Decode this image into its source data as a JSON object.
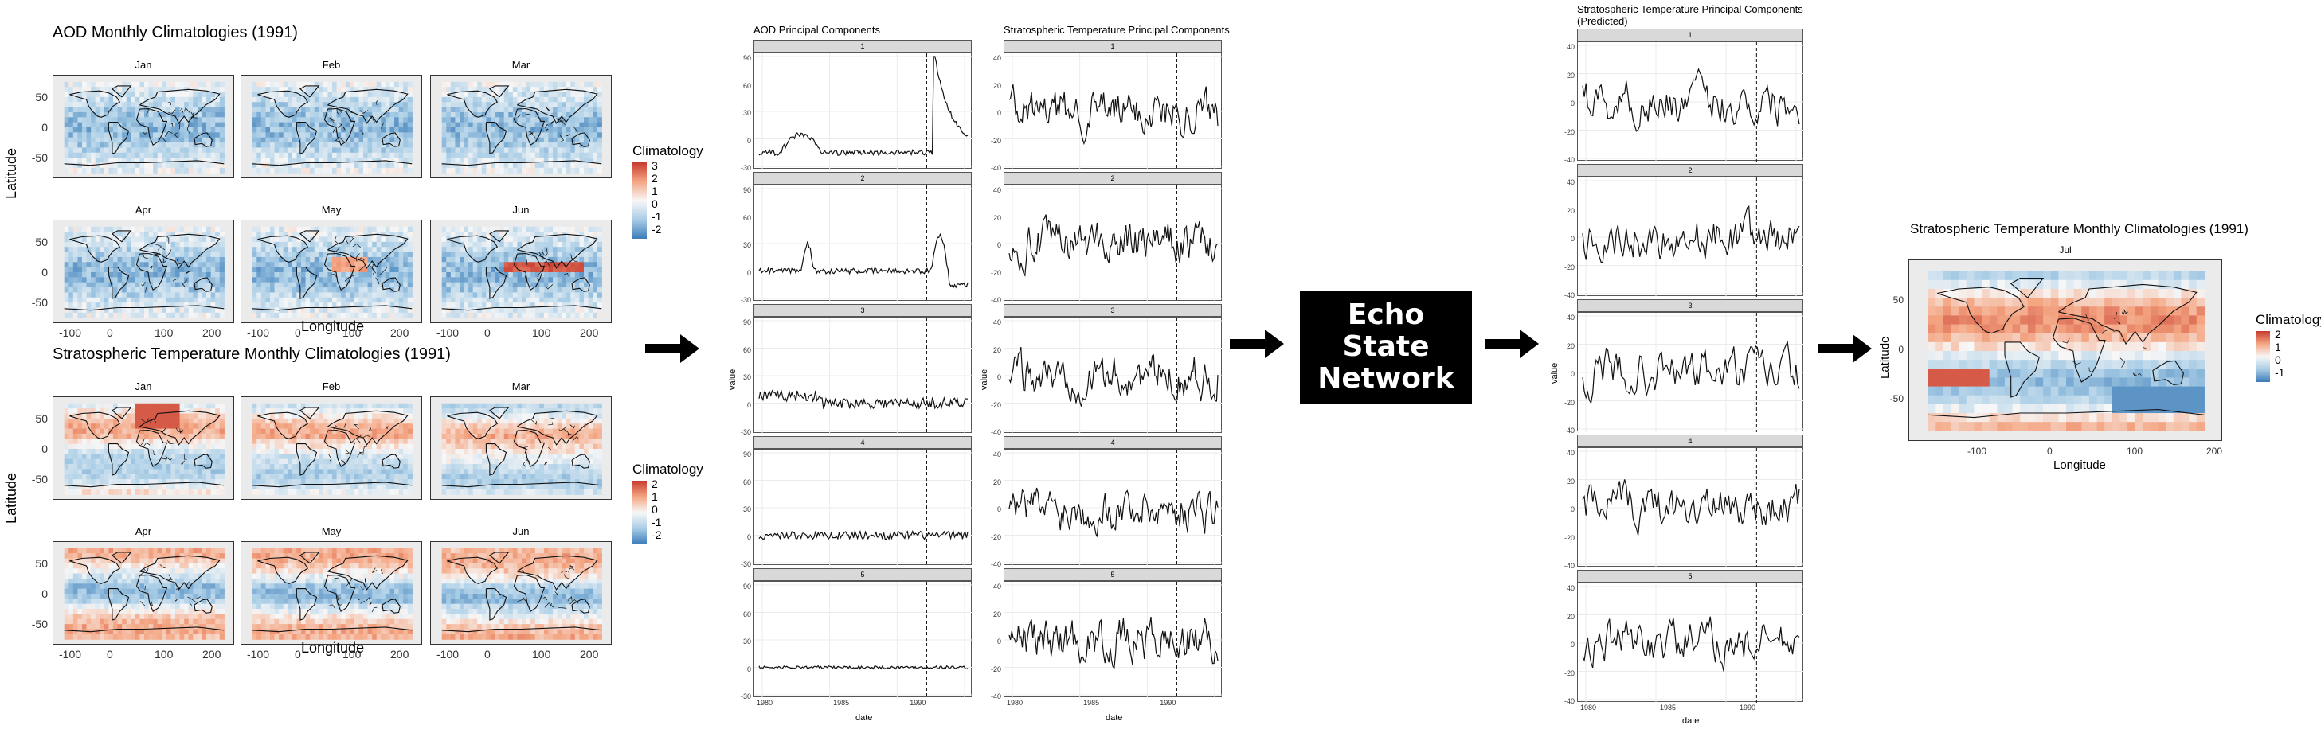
{
  "colors": {
    "blue": "#3b7cb8",
    "lightblue": "#a9cde6",
    "white": "#f7f7f7",
    "lightred": "#f4a582",
    "red": "#c73a2e",
    "panel_bg": "#ffffff",
    "grid": "#ebebeb",
    "strip": "#d9d9d9",
    "esn_bg": "#000000",
    "esn_text": "#ffffff"
  },
  "aod_maps": {
    "title": "AOD Monthly Climatologies (1991)",
    "months": [
      "Jan",
      "Feb",
      "Mar",
      "Apr",
      "May",
      "Jun"
    ],
    "ylabel": "Latitude",
    "xlabel": "Longitude",
    "y_ticks": [
      "50",
      "0",
      "-50"
    ],
    "x_ticks": [
      "-100",
      "0",
      "100",
      "200"
    ],
    "legend": {
      "title": "Climatology",
      "labels": [
        "3",
        "2",
        "1",
        "0",
        "-1",
        "-2"
      ]
    }
  },
  "temp_maps": {
    "title": "Stratospheric Temperature Monthly Climatologies (1991)",
    "months": [
      "Jan",
      "Feb",
      "Mar",
      "Apr",
      "May",
      "Jun"
    ],
    "ylabel": "Latitude",
    "xlabel": "Longitude",
    "y_ticks": [
      "50",
      "0",
      "-50"
    ],
    "x_ticks": [
      "-100",
      "0",
      "100",
      "200"
    ],
    "legend": {
      "title": "Climatology",
      "labels": [
        "2",
        "1",
        "0",
        "-1",
        "-2"
      ]
    }
  },
  "aod_pc": {
    "title": "AOD Principal Components",
    "y_ticks": [
      "90",
      "60",
      "30",
      "0",
      "-30"
    ],
    "ylabel": "value",
    "xlabel": "date",
    "x_ticks": [
      "1980",
      "1985",
      "1990"
    ]
  },
  "temp_pc": {
    "title": "Stratospheric Temperature Principal Components",
    "y_ticks": [
      "40",
      "20",
      "0",
      "-20",
      "-40"
    ],
    "xlabel": "date",
    "x_ticks": [
      "1980",
      "1985",
      "1990"
    ]
  },
  "pred_pc": {
    "title_line1": "Stratospheric Temperature Principal Components",
    "title_line2": "(Predicted)",
    "y_ticks": [
      "40",
      "20",
      "0",
      "-20",
      "-40"
    ],
    "ylabel": "value",
    "xlabel": "date",
    "x_ticks": [
      "1980",
      "1985",
      "1990"
    ]
  },
  "esn": {
    "line1": "Echo",
    "line2": "State",
    "line3": "Network"
  },
  "output_map": {
    "title": "Stratospheric Temperature Monthly Climatologies (1991)",
    "month": "Jul",
    "ylabel": "Latitude",
    "xlabel": "Longitude",
    "y_ticks": [
      "50",
      "0",
      "-50"
    ],
    "x_ticks": [
      "-100",
      "0",
      "100",
      "200"
    ],
    "legend": {
      "title": "Climatology",
      "labels": [
        "2",
        "1",
        "0",
        "-1"
      ]
    }
  },
  "strip_labels": [
    "1",
    "2",
    "3",
    "4",
    "5"
  ]
}
